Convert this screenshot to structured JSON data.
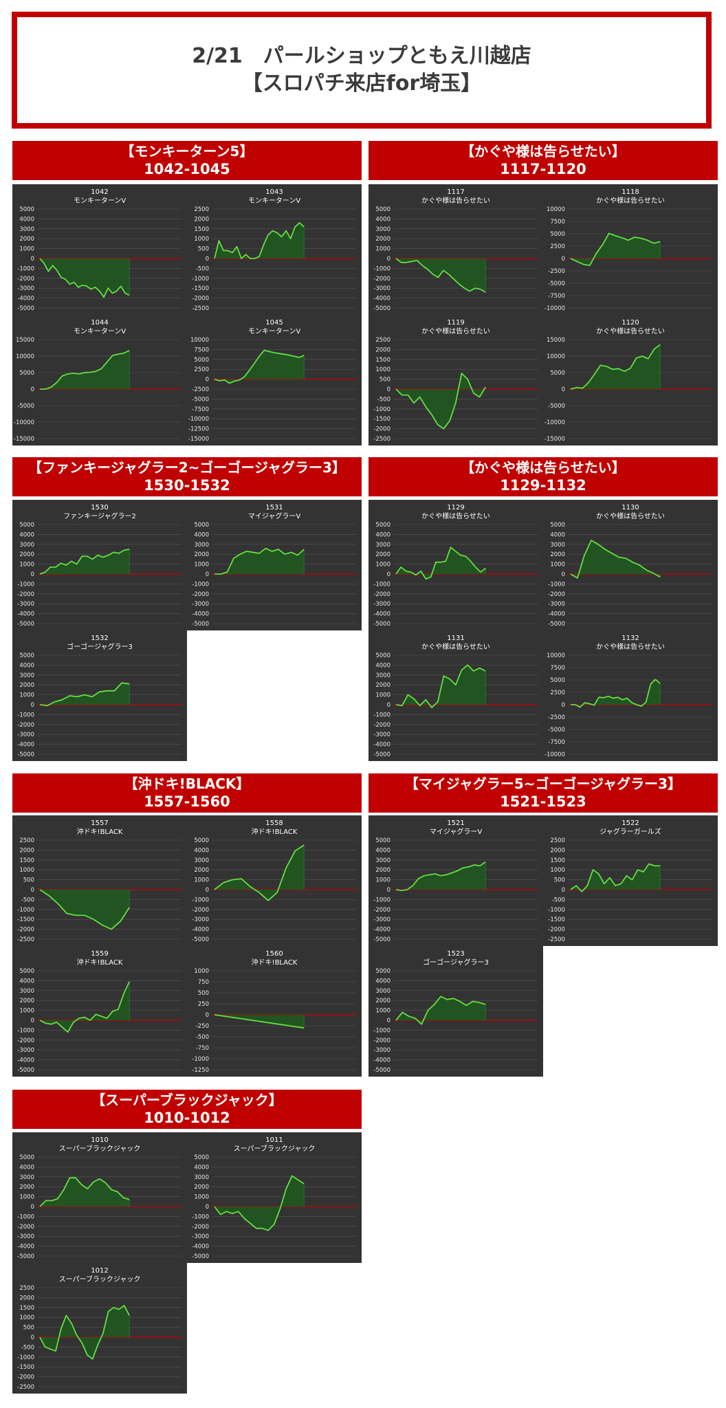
{
  "page": {
    "title_line1": "2/21　パールショップともえ川越店",
    "title_line2": "【スロパチ来店for埼玉】"
  },
  "groups": [
    {
      "name": "【モンキーターン5】",
      "range": "1042-1045"
    },
    {
      "name": "【かぐや様は告らせたい】",
      "range": "1117-1120"
    },
    {
      "name": "【ファンキージャグラー2~ゴーゴージャグラー3】",
      "range": "1530-1532"
    },
    {
      "name": "【かぐや様は告らせたい】",
      "range": "1129-1132"
    },
    {
      "name": "【沖ドキ!BLACK】",
      "range": "1557-1560"
    },
    {
      "name": "【マイジャグラー5~ゴーゴージャグラー3】",
      "range": "1521-1523"
    },
    {
      "name": "【スーパーブラックジャック】",
      "range": "1010-1012"
    }
  ],
  "colors": {
    "accent_red": "#c00000",
    "panel_bg": "#333333",
    "line": "#66dd44",
    "fill": "#1f5a1f",
    "zero_line": "#cc0000"
  },
  "chart_data": [
    {
      "type": "area",
      "number": "1042",
      "machine": "モンキーターンV",
      "ylim": [
        -5000,
        5000
      ],
      "yticks": [
        5000,
        4000,
        3000,
        2000,
        1000,
        0,
        -1000,
        -2000,
        -3000,
        -4000,
        -5000
      ],
      "values": [
        0,
        -500,
        -1300,
        -700,
        -1200,
        -1900,
        -2100,
        -2600,
        -2400,
        -2900,
        -2700,
        -2800,
        -3100,
        -2900,
        -3300,
        -3900,
        -3000,
        -3500,
        -3300,
        -2800,
        -3500,
        -3700
      ]
    },
    {
      "type": "area",
      "number": "1043",
      "machine": "モンキーターンV",
      "ylim": [
        -2500,
        2500
      ],
      "yticks": [
        2500,
        2000,
        1500,
        1000,
        500,
        0,
        -500,
        -1000,
        -1500,
        -2000,
        -2500
      ],
      "values": [
        0,
        900,
        400,
        400,
        300,
        600,
        0,
        200,
        0,
        0,
        100,
        700,
        1200,
        1400,
        1300,
        1100,
        1400,
        1000,
        1600,
        1800,
        1600
      ]
    },
    {
      "type": "area",
      "number": "1044",
      "machine": "モンキーターンV",
      "ylim": [
        -15000,
        15000
      ],
      "yticks": [
        15000,
        10000,
        5000,
        0,
        -5000,
        -10000,
        -15000
      ],
      "values": [
        0,
        0,
        600,
        2000,
        4000,
        4600,
        4800,
        4600,
        5000,
        5100,
        5400,
        6200,
        8200,
        10200,
        10600,
        10900,
        11700
      ]
    },
    {
      "type": "area",
      "number": "1045",
      "machine": "モンキーターンV",
      "ylim": [
        -15000,
        10000
      ],
      "yticks": [
        10000,
        7500,
        5000,
        2500,
        0,
        -2500,
        -5000,
        -7500,
        -10000,
        -12500,
        -15000
      ],
      "values": [
        0,
        -400,
        -200,
        -1000,
        -500,
        -200,
        600,
        2200,
        4000,
        5800,
        7300,
        7000,
        6700,
        6500,
        6300,
        6100,
        5800,
        5500,
        6000
      ]
    },
    {
      "type": "area",
      "number": "1117",
      "machine": "かぐや様は告らせたい",
      "ylim": [
        -5000,
        5000
      ],
      "yticks": [
        5000,
        4000,
        3000,
        2000,
        1000,
        0,
        -1000,
        -2000,
        -3000,
        -4000,
        -5000
      ],
      "values": [
        0,
        -400,
        -400,
        -300,
        -200,
        -700,
        -1100,
        -1600,
        -1900,
        -1200,
        -1600,
        -2100,
        -2600,
        -3000,
        -3300,
        -3000,
        -3100,
        -3400
      ]
    },
    {
      "type": "area",
      "number": "1118",
      "machine": "かぐや様は告らせたい",
      "ylim": [
        -10000,
        10000
      ],
      "yticks": [
        10000,
        7500,
        5000,
        2500,
        0,
        -2500,
        -5000,
        -7500,
        -10000
      ],
      "values": [
        0,
        -600,
        -1200,
        -1400,
        1000,
        2800,
        5100,
        4600,
        4200,
        3700,
        4300,
        4100,
        3700,
        3100,
        3400
      ]
    },
    {
      "type": "area",
      "number": "1119",
      "machine": "かぐや様は告らせたい",
      "ylim": [
        -2500,
        2500
      ],
      "yticks": [
        2500,
        2000,
        1500,
        1000,
        500,
        0,
        -500,
        -1000,
        -1500,
        -2000,
        -2500
      ],
      "values": [
        0,
        -300,
        -300,
        -700,
        -400,
        -900,
        -1300,
        -1800,
        -2000,
        -1600,
        -700,
        800,
        500,
        -200,
        -400,
        100
      ]
    },
    {
      "type": "area",
      "number": "1120",
      "machine": "かぐや様は告らせたい",
      "ylim": [
        -15000,
        15000
      ],
      "yticks": [
        15000,
        10000,
        5000,
        0,
        -5000,
        -10000,
        -15000
      ],
      "values": [
        0,
        500,
        300,
        2000,
        4500,
        7200,
        6900,
        6000,
        6200,
        5400,
        6300,
        9400,
        10000,
        9200,
        12100,
        13500
      ]
    },
    {
      "type": "area",
      "number": "1530",
      "machine": "ファンキージャグラー2",
      "ylim": [
        -5000,
        5000
      ],
      "yticks": [
        5000,
        4000,
        3000,
        2000,
        1000,
        0,
        -1000,
        -2000,
        -3000,
        -4000,
        -5000
      ],
      "values": [
        0,
        200,
        700,
        700,
        1100,
        900,
        1300,
        1000,
        1800,
        1800,
        1500,
        1900,
        1700,
        1900,
        2200,
        2100,
        2400,
        2500
      ]
    },
    {
      "type": "area",
      "number": "1531",
      "machine": "マイジャグラーV",
      "ylim": [
        -5000,
        5000
      ],
      "yticks": [
        5000,
        4000,
        3000,
        2000,
        1000,
        0,
        -1000,
        -2000,
        -3000,
        -4000,
        -5000
      ],
      "values": [
        0,
        0,
        200,
        1600,
        2000,
        2300,
        2200,
        2100,
        2600,
        2300,
        2500,
        2000,
        2200,
        1900,
        2500
      ]
    },
    {
      "type": "area",
      "number": "1532",
      "machine": "ゴーゴージャグラー3",
      "ylim": [
        -5000,
        5000
      ],
      "yticks": [
        5000,
        4000,
        3000,
        2000,
        1000,
        0,
        -1000,
        -2000,
        -3000,
        -4000,
        -5000
      ],
      "values": [
        0,
        -100,
        300,
        500,
        900,
        800,
        1000,
        800,
        1300,
        1400,
        1400,
        2200,
        2100
      ]
    },
    {
      "type": "area",
      "number": "1129",
      "machine": "かぐや様は告らせたい",
      "ylim": [
        -5000,
        5000
      ],
      "yticks": [
        5000,
        4000,
        3000,
        2000,
        1000,
        0,
        -1000,
        -2000,
        -3000,
        -4000,
        -5000
      ],
      "values": [
        0,
        700,
        300,
        200,
        -100,
        300,
        -500,
        -300,
        1200,
        1200,
        1300,
        2700,
        2300,
        1900,
        1800,
        1300,
        700,
        200,
        600
      ]
    },
    {
      "type": "area",
      "number": "1130",
      "machine": "かぐや様は告らせたい",
      "ylim": [
        -5000,
        5000
      ],
      "yticks": [
        5000,
        4000,
        3000,
        2000,
        1000,
        0,
        -1000,
        -2000,
        -3000,
        -4000,
        -5000
      ],
      "values": [
        0,
        -400,
        1900,
        3400,
        3000,
        2500,
        2100,
        1700,
        1600,
        1200,
        900,
        400,
        100,
        -300
      ]
    },
    {
      "type": "area",
      "number": "1131",
      "machine": "かぐや様は告らせたい",
      "ylim": [
        -5000,
        5000
      ],
      "yticks": [
        5000,
        4000,
        3000,
        2000,
        1000,
        0,
        -1000,
        -2000,
        -3000,
        -4000,
        -5000
      ],
      "values": [
        0,
        -100,
        1000,
        600,
        -100,
        500,
        -300,
        300,
        2900,
        2600,
        2000,
        3500,
        4000,
        3400,
        3700,
        3400
      ]
    },
    {
      "type": "area",
      "number": "1132",
      "machine": "かぐや様は告らせたい",
      "ylim": [
        -10000,
        10000
      ],
      "yticks": [
        10000,
        7500,
        5000,
        2500,
        0,
        -2500,
        -5000,
        -7500,
        -10000
      ],
      "values": [
        0,
        0,
        -500,
        400,
        200,
        -100,
        1500,
        1400,
        1700,
        1300,
        1500,
        1000,
        1300,
        400,
        0,
        -300,
        500,
        4200,
        5100,
        4300
      ]
    },
    {
      "type": "area",
      "number": "1557",
      "machine": "沖ドキ!BLACK",
      "ylim": [
        -2500,
        2500
      ],
      "yticks": [
        2500,
        2000,
        1500,
        1000,
        500,
        0,
        -500,
        -1000,
        -1500,
        -2000,
        -2500
      ],
      "values": [
        0,
        -300,
        -700,
        -1200,
        -1300,
        -1300,
        -1500,
        -1800,
        -2000,
        -1600,
        -900
      ]
    },
    {
      "type": "area",
      "number": "1558",
      "machine": "沖ドキ!BLACK",
      "ylim": [
        -5000,
        5000
      ],
      "yticks": [
        5000,
        4000,
        3000,
        2000,
        1000,
        0,
        -1000,
        -2000,
        -3000,
        -4000,
        -5000
      ],
      "values": [
        0,
        700,
        1000,
        1100,
        300,
        -300,
        -1100,
        -300,
        2200,
        3900,
        4500
      ]
    },
    {
      "type": "area",
      "number": "1559",
      "machine": "沖ドキ!BLACK",
      "ylim": [
        -5000,
        5000
      ],
      "yticks": [
        5000,
        4000,
        3000,
        2000,
        1000,
        0,
        -1000,
        -2000,
        -3000,
        -4000,
        -5000
      ],
      "values": [
        0,
        -300,
        -400,
        -200,
        -700,
        -1200,
        -200,
        200,
        300,
        0,
        600,
        400,
        200,
        900,
        1100,
        2700,
        3900
      ]
    },
    {
      "type": "area",
      "number": "1560",
      "machine": "沖ドキ!BLACK",
      "ylim": [
        -12500,
        1000
      ],
      "yticks": [
        1000,
        750,
        500,
        250,
        0,
        -250,
        -500,
        -750,
        -1000,
        -1250
      ],
      "values": [
        0,
        -300
      ]
    },
    {
      "type": "area",
      "number": "1521",
      "machine": "マイジャグラーV",
      "ylim": [
        -5000,
        5000
      ],
      "yticks": [
        5000,
        4000,
        3000,
        2000,
        1000,
        0,
        -1000,
        -2000,
        -3000,
        -4000,
        -5000
      ],
      "values": [
        0,
        -100,
        0,
        400,
        1100,
        1400,
        1500,
        1600,
        1400,
        1500,
        1700,
        1900,
        2200,
        2300,
        2500,
        2400,
        2800
      ]
    },
    {
      "type": "area",
      "number": "1522",
      "machine": "ジャグラーガールズ",
      "ylim": [
        -2500,
        2500
      ],
      "yticks": [
        2500,
        2000,
        1500,
        1000,
        500,
        0,
        -500,
        -1000,
        -1500,
        -2000,
        -2500
      ],
      "values": [
        0,
        200,
        -100,
        200,
        1000,
        800,
        300,
        600,
        200,
        300,
        700,
        500,
        1000,
        900,
        1300,
        1200,
        1200
      ]
    },
    {
      "type": "area",
      "number": "1523",
      "machine": "ゴーゴージャグラー3",
      "ylim": [
        -5000,
        5000
      ],
      "yticks": [
        5000,
        4000,
        3000,
        2000,
        1000,
        0,
        -1000,
        -2000,
        -3000,
        -4000,
        -5000
      ],
      "values": [
        0,
        800,
        400,
        200,
        -400,
        1000,
        1600,
        2400,
        2100,
        2200,
        1900,
        1500,
        1900,
        1800,
        1600
      ]
    },
    {
      "type": "area",
      "number": "1010",
      "machine": "スーパーブラックジャック",
      "ylim": [
        -5000,
        5000
      ],
      "yticks": [
        5000,
        4000,
        3000,
        2000,
        1000,
        0,
        -1000,
        -2000,
        -3000,
        -4000,
        -5000
      ],
      "values": [
        0,
        600,
        600,
        800,
        1700,
        2900,
        2900,
        2200,
        1800,
        2500,
        2800,
        2400,
        1700,
        1500,
        900,
        700
      ]
    },
    {
      "type": "area",
      "number": "1011",
      "machine": "スーパーブラックジャック",
      "ylim": [
        -5000,
        5000
      ],
      "yticks": [
        5000,
        4000,
        3000,
        2000,
        1000,
        0,
        -1000,
        -2000,
        -3000,
        -4000,
        -5000
      ],
      "values": [
        0,
        -800,
        -500,
        -700,
        -500,
        -1200,
        -1700,
        -2200,
        -2200,
        -2400,
        -1800,
        -200,
        1800,
        3100,
        2700,
        2300
      ]
    },
    {
      "type": "area",
      "number": "1012",
      "machine": "スーパーブラックジャック",
      "ylim": [
        -2500,
        2500
      ],
      "yticks": [
        2500,
        2000,
        1500,
        1000,
        500,
        0,
        -500,
        -1000,
        -1500,
        -2000,
        -2500
      ],
      "values": [
        0,
        -500,
        -600,
        -700,
        400,
        1100,
        700,
        100,
        -300,
        -900,
        -1100,
        -400,
        200,
        1300,
        1500,
        1400,
        1600,
        1100
      ]
    }
  ]
}
